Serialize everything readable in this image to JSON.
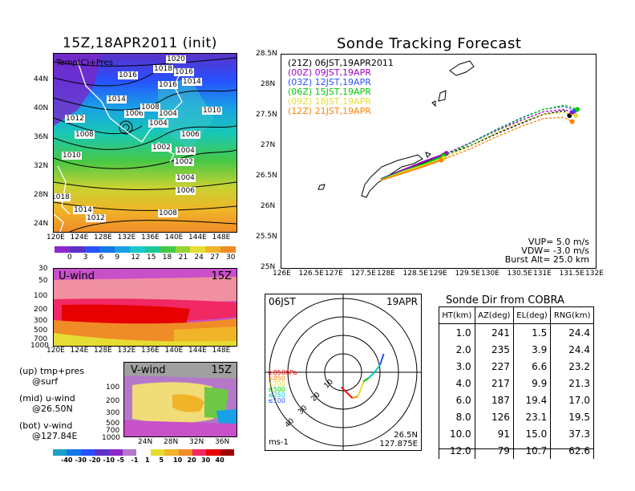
{
  "map_panel": {
    "title": "15Z,18APR2011 (init)",
    "overlay_label": "Temp(C)+Pres",
    "lat_ticks": [
      "44N",
      "40N",
      "36N",
      "32N",
      "28N",
      "24N"
    ],
    "lon_ticks": [
      "120E",
      "124E",
      "128E",
      "132E",
      "136E",
      "140E",
      "144E",
      "148E"
    ],
    "isobar_labels": [
      "1020",
      "1018",
      "1016",
      "1016",
      "1014",
      "1016",
      "1014",
      "1012",
      "1006",
      "1004",
      "1008",
      "1010",
      "1008",
      "1004",
      "1006",
      "1002",
      "1004",
      "1002",
      "1010",
      "1004",
      "1006",
      "1018",
      "1014",
      "1012",
      "1008"
    ],
    "colorbar_ticks": [
      "0",
      "3",
      "6",
      "9",
      "12",
      "15",
      "18",
      "21",
      "24",
      "27",
      "30"
    ]
  },
  "u_panel": {
    "label": "U-wind",
    "time": "15Z",
    "p_ticks": [
      "30",
      "50",
      "100",
      "200",
      "300",
      "500",
      "700",
      "1000"
    ],
    "lon_ticks": [
      "120E",
      "124E",
      "128E",
      "132E",
      "136E",
      "140E",
      "144E",
      "148E"
    ]
  },
  "v_panel": {
    "label": "V-wind",
    "time": "15Z",
    "p_ticks": [
      "100",
      "200",
      "300",
      "500",
      "700",
      "1000"
    ],
    "lat_ticks": [
      "24N",
      "28N",
      "32N",
      "36N"
    ]
  },
  "notes": [
    "(up) tmp+pres",
    "@surf",
    "(mid) u-wind",
    "@26.50N",
    "(bot) v-wind",
    "@127.84E"
  ],
  "wind_colorbar_ticks": [
    "-40",
    "-30",
    "-20",
    "-10",
    "-5",
    "-1",
    "1",
    "5",
    "10",
    "20",
    "30",
    "40"
  ],
  "track": {
    "title": "Sonde Tracking Forecast",
    "lat_ticks": [
      "28.5N",
      "28N",
      "27.5N",
      "27N",
      "26.5N",
      "26N",
      "25.5N",
      "25N"
    ],
    "lon_ticks": [
      "126E",
      "126.5E",
      "127E",
      "127.5E",
      "128E",
      "128.5E",
      "129E",
      "129.5E",
      "130E",
      "130.5E",
      "131E",
      "131.5E",
      "132E"
    ],
    "info": [
      "VUP= 5.0 m/s",
      "VDW= -3.0 m/s",
      "Burst Alt= 25.0 km"
    ],
    "colors": {
      "21Z": "#000000",
      "00Z": "#a000c8",
      "03Z": "#2850ff",
      "06Z": "#00c800",
      "09Z": "#e6dc32",
      "12Z": "#ff8200"
    }
  },
  "polar": {
    "time": "06JST",
    "date": "19APR",
    "ring_labels": [
      "10",
      "20",
      "30",
      "40"
    ],
    "unit": "ms-1",
    "position_lat": "26.5N",
    "position_lon": "127.875E",
    "levels": [
      "≥850hPa",
      "≤850",
      "≤700",
      "≤500",
      "≤250",
      "≤100"
    ],
    "level_colors": [
      "#ff0000",
      "#ff8200",
      "#e6dc32",
      "#00c800",
      "#00c8c8",
      "#2850ff"
    ]
  },
  "sonde_table": {
    "title": "Sonde Dir from COBRA",
    "headers": [
      "HT(km)",
      "AZ(deg)",
      "EL(deg)",
      "RNG(km)"
    ],
    "rows": [
      [
        "1.0",
        "241",
        "1.5",
        "24.4"
      ],
      [
        "2.0",
        "235",
        "3.9",
        "24.4"
      ],
      [
        "3.0",
        "227",
        "6.6",
        "23.2"
      ],
      [
        "4.0",
        "217",
        "9.9",
        "21.3"
      ],
      [
        "6.0",
        "187",
        "19.4",
        "17.0"
      ],
      [
        "8.0",
        "126",
        "23.1",
        "19.5"
      ],
      [
        "10.0",
        "91",
        "15.0",
        "37.3"
      ],
      [
        "12.0",
        "79",
        "10.7",
        "62.6"
      ]
    ]
  },
  "chart_data": [
    {
      "type": "line",
      "title": "Sonde Tracking Forecast",
      "xlabel": "",
      "ylabel": "",
      "xlim": [
        126,
        132
      ],
      "ylim": [
        25,
        28.5
      ],
      "legend_position": "top-left",
      "series": [
        {
          "name": "(21Z) 06JST,19APR2011",
          "x": [
            127.9,
            128.3,
            128.7,
            129.1,
            129.6,
            130.1,
            130.6,
            131.0,
            131.4,
            131.5
          ],
          "y": [
            26.46,
            26.6,
            26.72,
            26.85,
            27.0,
            27.2,
            27.38,
            27.52,
            27.58,
            27.5
          ]
        },
        {
          "name": "(00Z) 09JST,19APR",
          "x": [
            127.9,
            128.3,
            128.7,
            129.15,
            129.6,
            130.1,
            130.6,
            131.0,
            131.4,
            131.55
          ],
          "y": [
            26.45,
            26.6,
            26.74,
            26.88,
            27.05,
            27.25,
            27.43,
            27.56,
            27.6,
            27.55
          ]
        },
        {
          "name": "(03Z) 12JST,19APR",
          "x": [
            127.9,
            128.3,
            128.7,
            129.1,
            129.6,
            130.1,
            130.6,
            131.0,
            131.4,
            131.6
          ],
          "y": [
            26.46,
            26.58,
            26.7,
            26.84,
            27.05,
            27.27,
            27.47,
            27.6,
            27.65,
            27.58
          ]
        },
        {
          "name": "(06Z) 15JST,19APR",
          "x": [
            127.9,
            128.3,
            128.7,
            129.1,
            129.6,
            130.1,
            130.6,
            131.0,
            131.4,
            131.65
          ],
          "y": [
            26.45,
            26.58,
            26.7,
            26.84,
            27.04,
            27.26,
            27.46,
            27.6,
            27.67,
            27.6
          ]
        },
        {
          "name": "(09Z) 18JST,19APR",
          "x": [
            127.9,
            128.3,
            128.7,
            129.1,
            129.6,
            130.1,
            130.6,
            131.0,
            131.4,
            131.62
          ],
          "y": [
            26.44,
            26.57,
            26.68,
            26.8,
            27.0,
            27.22,
            27.4,
            27.52,
            27.55,
            27.5
          ]
        },
        {
          "name": "(12Z) 21JST,19APR",
          "x": [
            127.9,
            128.3,
            128.7,
            129.05,
            129.6,
            130.1,
            130.6,
            131.0,
            131.4,
            131.55
          ],
          "y": [
            26.44,
            26.55,
            26.66,
            26.77,
            26.95,
            27.15,
            27.33,
            27.45,
            27.47,
            27.4
          ]
        }
      ]
    },
    {
      "type": "scatter",
      "title": "",
      "xlabel": "",
      "ylabel": "",
      "radial_unit": "ms-1",
      "series": [
        {
          "name": "hodograph",
          "u": [
            -1,
            2,
            5,
            8,
            10,
            11,
            14,
            17,
            20,
            22
          ],
          "v": [
            -8,
            -11,
            -14,
            -13,
            -8,
            -5,
            -3,
            0,
            4,
            10
          ]
        }
      ]
    }
  ]
}
